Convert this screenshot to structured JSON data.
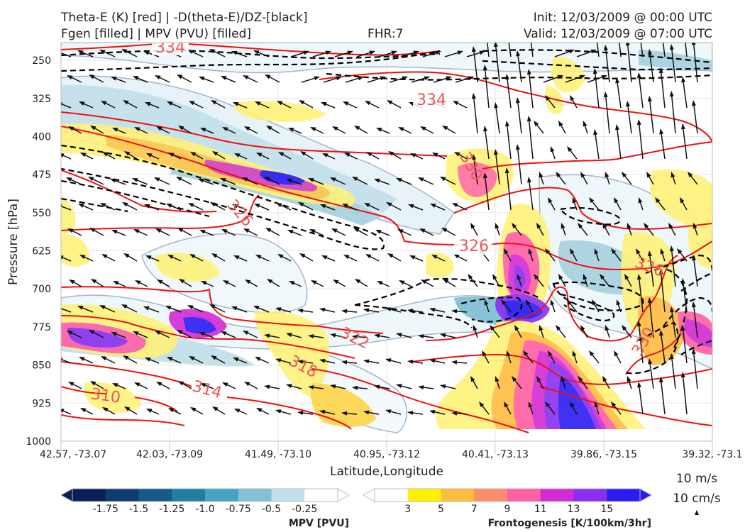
{
  "header": {
    "title_line1": "Theta-E (K) [red] | -D(theta-E)/DZ-[black]",
    "title_line2": "Fgen [filled] | MPV (PVU) [filled]",
    "fhr": "FHR:7",
    "init": "Init: 12/03/2009 @ 00:00 UTC",
    "valid": "Valid: 12/03/2009 @ 07:00 UTC"
  },
  "chart_data": {
    "type": "cross-section",
    "ylabel": "Pressure [hPa]",
    "xlabel": "Latitude,Longitude",
    "y_ticks": [
      "250",
      "325",
      "400",
      "475",
      "550",
      "625",
      "700",
      "775",
      "850",
      "925",
      "1000"
    ],
    "y_values": [
      250,
      325,
      400,
      475,
      550,
      625,
      700,
      775,
      850,
      925,
      1000
    ],
    "ylim": [
      1000,
      215
    ],
    "x_ticks": [
      "42.57, -73.07",
      "42.03, -73.09",
      "41.49, -73.10",
      "40.95, -73.12",
      "40.41, -73.13",
      "39.86, -73.15",
      "39.32, -73.1"
    ],
    "grid": true,
    "theta_e_contour_labels": [
      "334",
      "334",
      "330",
      "326",
      "326",
      "326",
      "322",
      "318",
      "314",
      "310",
      "330"
    ],
    "colors": {
      "theta_e": "#ee1111",
      "ddz": "#000000",
      "wind": "#111111",
      "mpv_outline": "#9fb0cc"
    },
    "mpv_colorbar": {
      "label": "MPV [PVU]",
      "ticks": [
        "-1.75",
        "-1.5",
        "-1.25",
        "-1.0",
        "-0.75",
        "-0.5",
        "-0.25"
      ],
      "colors": [
        "#0a1e5a",
        "#0f3b73",
        "#155a8a",
        "#1f7fa3",
        "#45a4c4",
        "#84c0d6",
        "#c2e0ea",
        "#ffffff"
      ]
    },
    "fgen_colorbar": {
      "label": "Frontogenesis [K/100km/3hr]",
      "ticks": [
        "3",
        "5",
        "7",
        "9",
        "11",
        "13",
        "15"
      ],
      "colors": [
        "#ffffff",
        "#fff200",
        "#ffbd40",
        "#ff8c6b",
        "#ff5fa3",
        "#d42ad4",
        "#8a2ff0",
        "#2b1cf5"
      ]
    },
    "wind_reference": {
      "horizontal": "10 m/s",
      "vertical": "10 cm/s"
    }
  }
}
